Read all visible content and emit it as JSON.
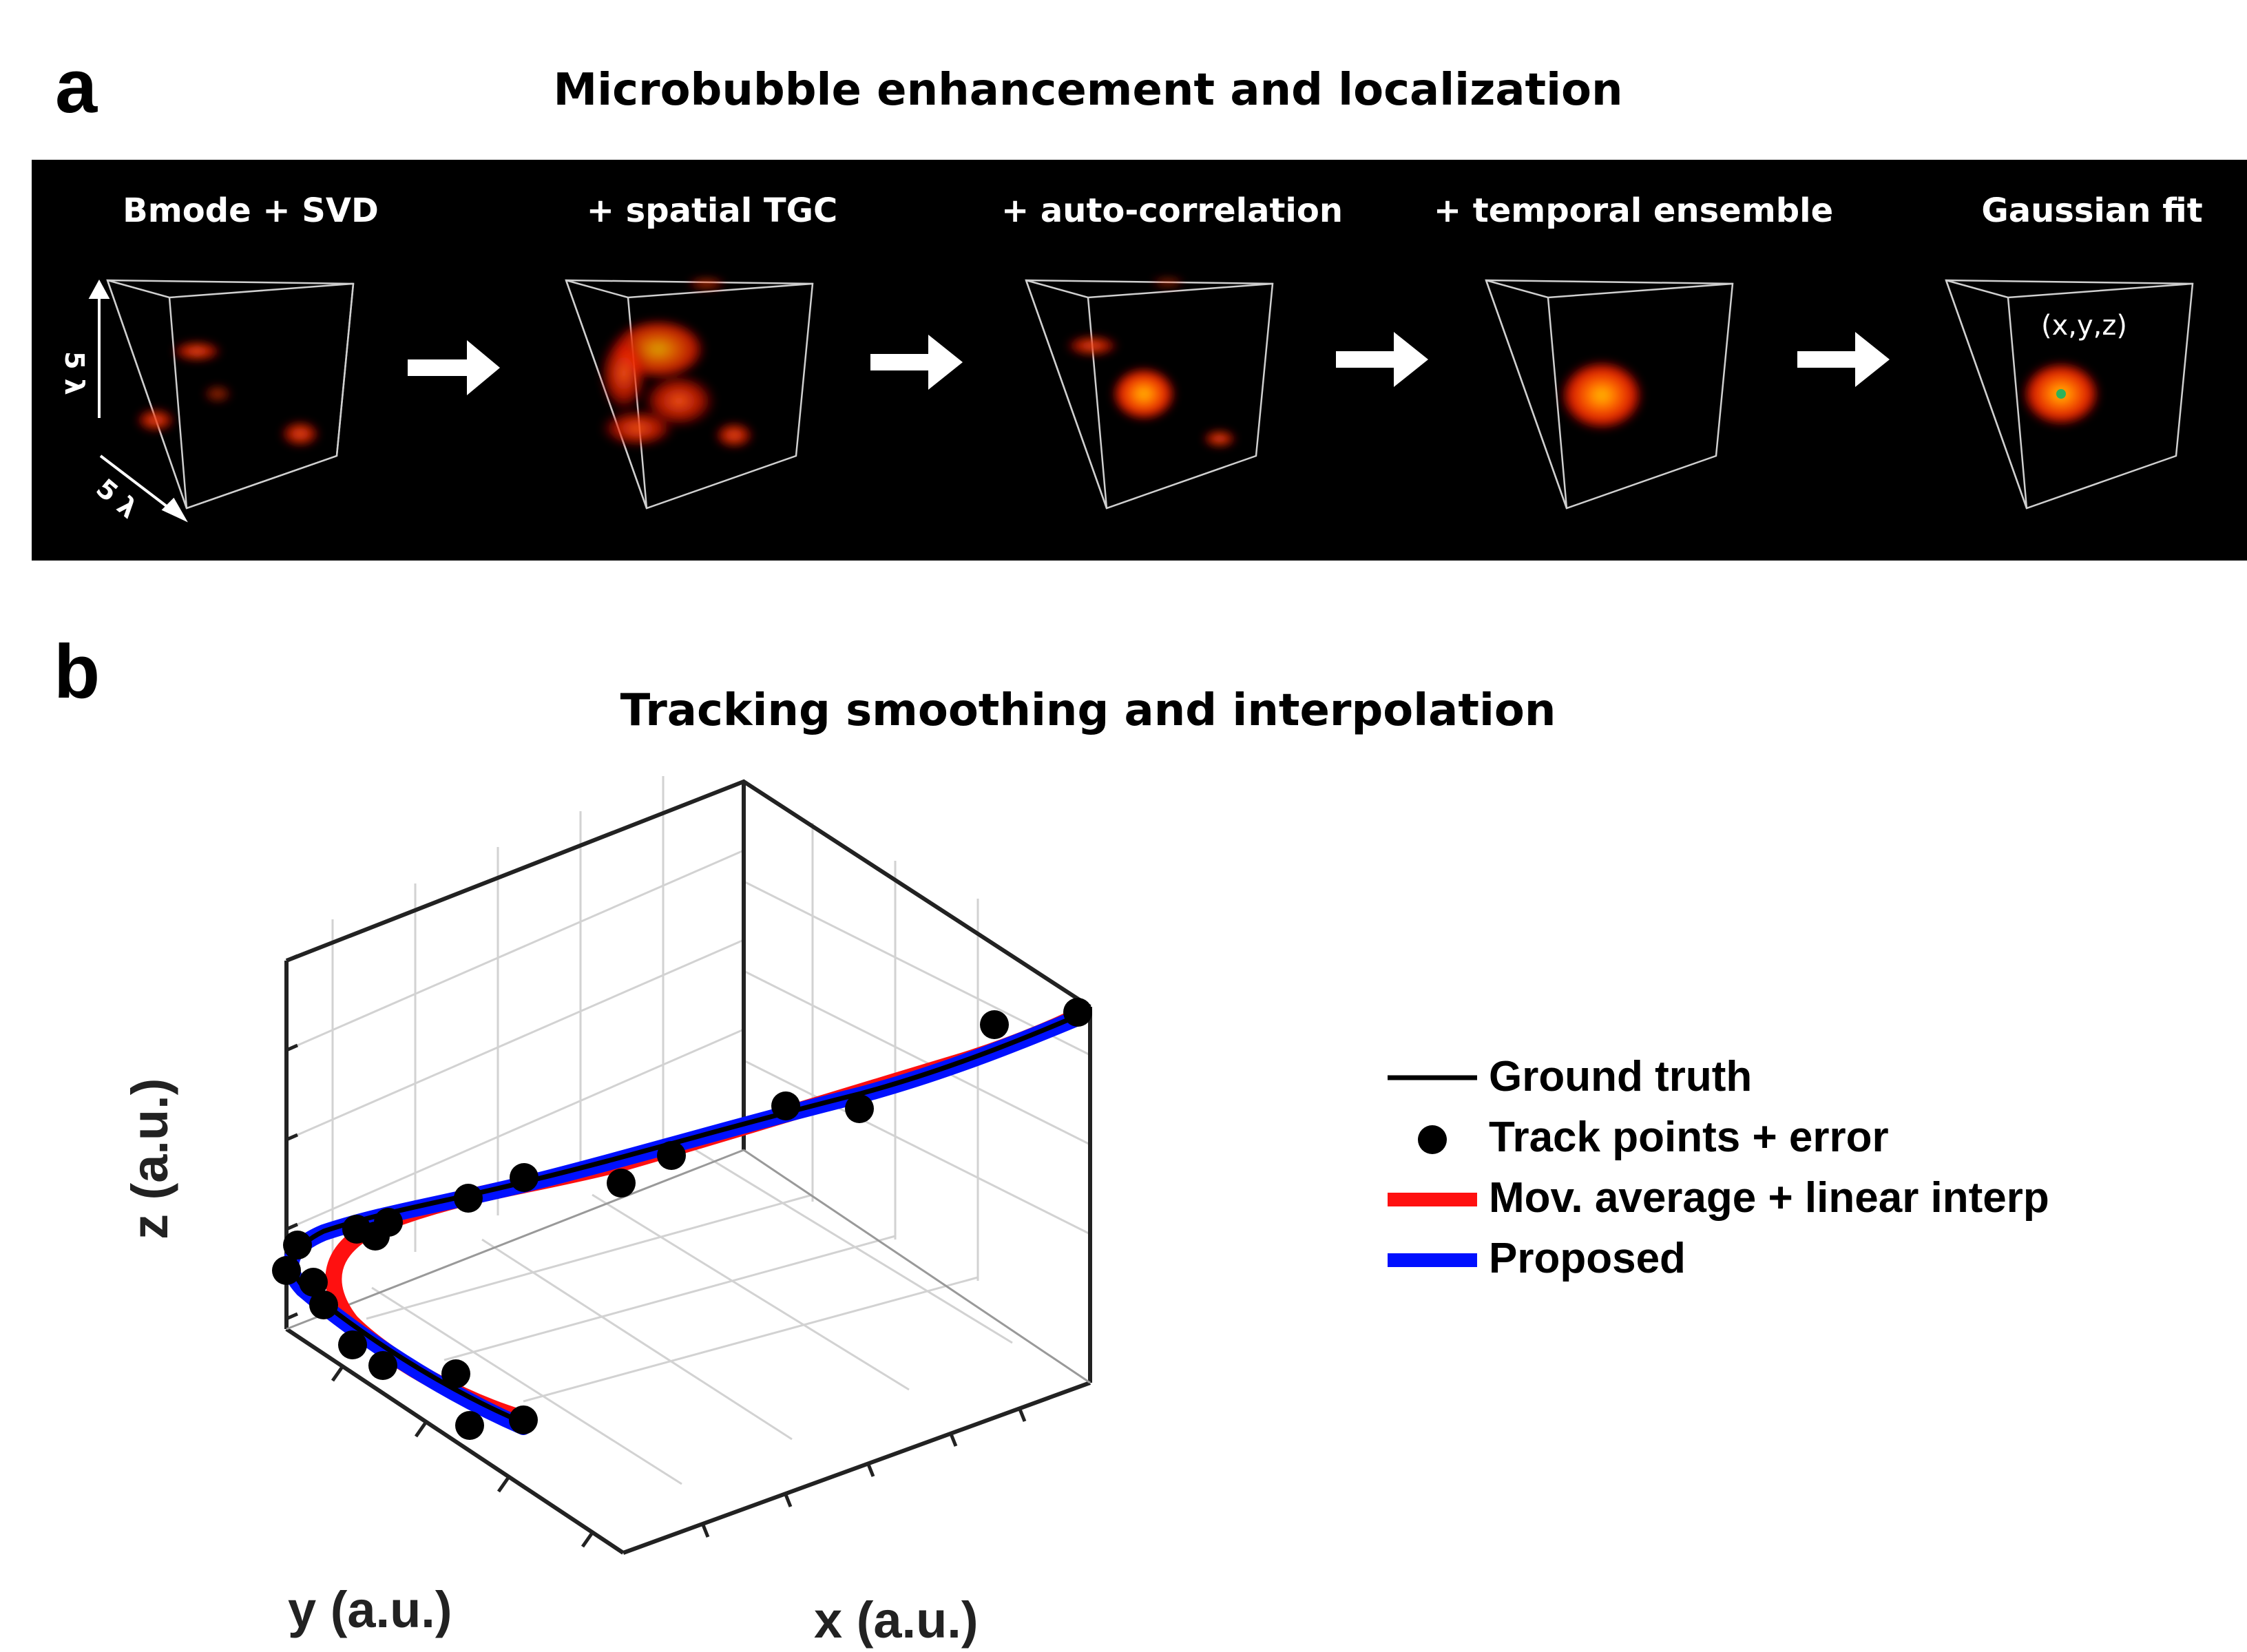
{
  "panel_a": {
    "letter": "a",
    "title": "Microbubble enhancement and localization",
    "stages": [
      {
        "label": "Bmode + SVD"
      },
      {
        "label": "+ spatial TGC"
      },
      {
        "label": "+ auto-correlation"
      },
      {
        "label": "+ temporal ensemble"
      },
      {
        "label": "Gaussian fit"
      }
    ],
    "scale_vertical": "5 λ",
    "scale_depth": "5 λ",
    "localization_label": "(x,y,z)",
    "colors": {
      "background": "#000000",
      "blob": "#ff2a00",
      "blob_core": "#ffb000",
      "arrow": "#ffffff",
      "centroid": "#2bb35a"
    }
  },
  "panel_b": {
    "letter": "b",
    "title": "Tracking smoothing and interpolation",
    "chart_data": {
      "type": "line",
      "projection": "3d",
      "xlabel": "x (a.u.)",
      "ylabel": "y (a.u.)",
      "zlabel": "z (a.u.)",
      "grid": true,
      "legend_position": "right",
      "series": [
        {
          "name": "Ground truth",
          "color": "#000000",
          "style": "thin line"
        },
        {
          "name": "Track points + error",
          "color": "#000000",
          "style": "markers"
        },
        {
          "name": "Mov. average + linear interp",
          "color": "#ff0000",
          "style": "thick line"
        },
        {
          "name": "Proposed",
          "color": "#0000ff",
          "style": "thick line"
        }
      ]
    }
  }
}
